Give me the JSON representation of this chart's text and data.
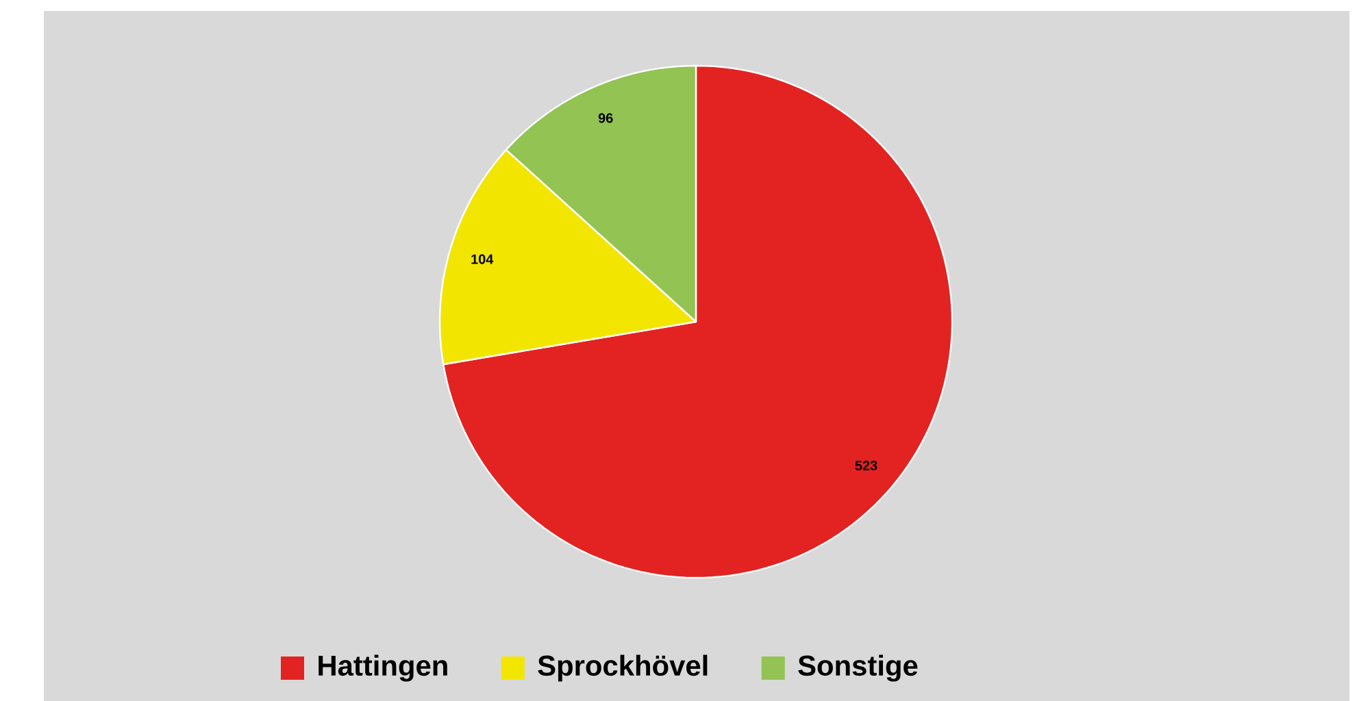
{
  "chart_data": {
    "type": "pie",
    "categories": [
      "Hattingen",
      "Sprockhövel",
      "Sonstige"
    ],
    "values": [
      523,
      104,
      96
    ],
    "colors": [
      "#e32322",
      "#f2e600",
      "#92c353"
    ],
    "data_labels": true,
    "legend": "bottom"
  }
}
